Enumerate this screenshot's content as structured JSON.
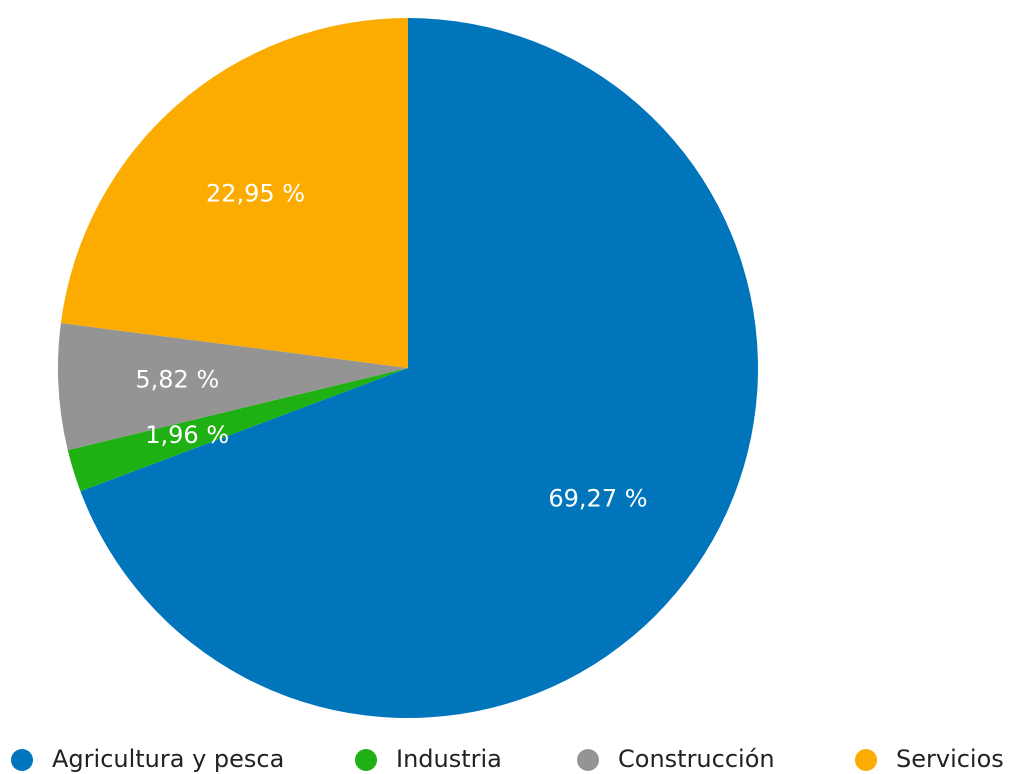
{
  "chart_data": {
    "type": "pie",
    "categories": [
      "Agricultura y pesca",
      "Industria",
      "Construcción",
      "Servicios"
    ],
    "values": [
      69.27,
      1.96,
      5.82,
      22.95
    ],
    "value_labels": [
      "69,27 %",
      "1,96 %",
      "5,82 %",
      "22,95 %"
    ],
    "colors": [
      "#0075bc",
      "#1fb013",
      "#949494",
      "#fcac00"
    ],
    "legend": "bottom"
  }
}
